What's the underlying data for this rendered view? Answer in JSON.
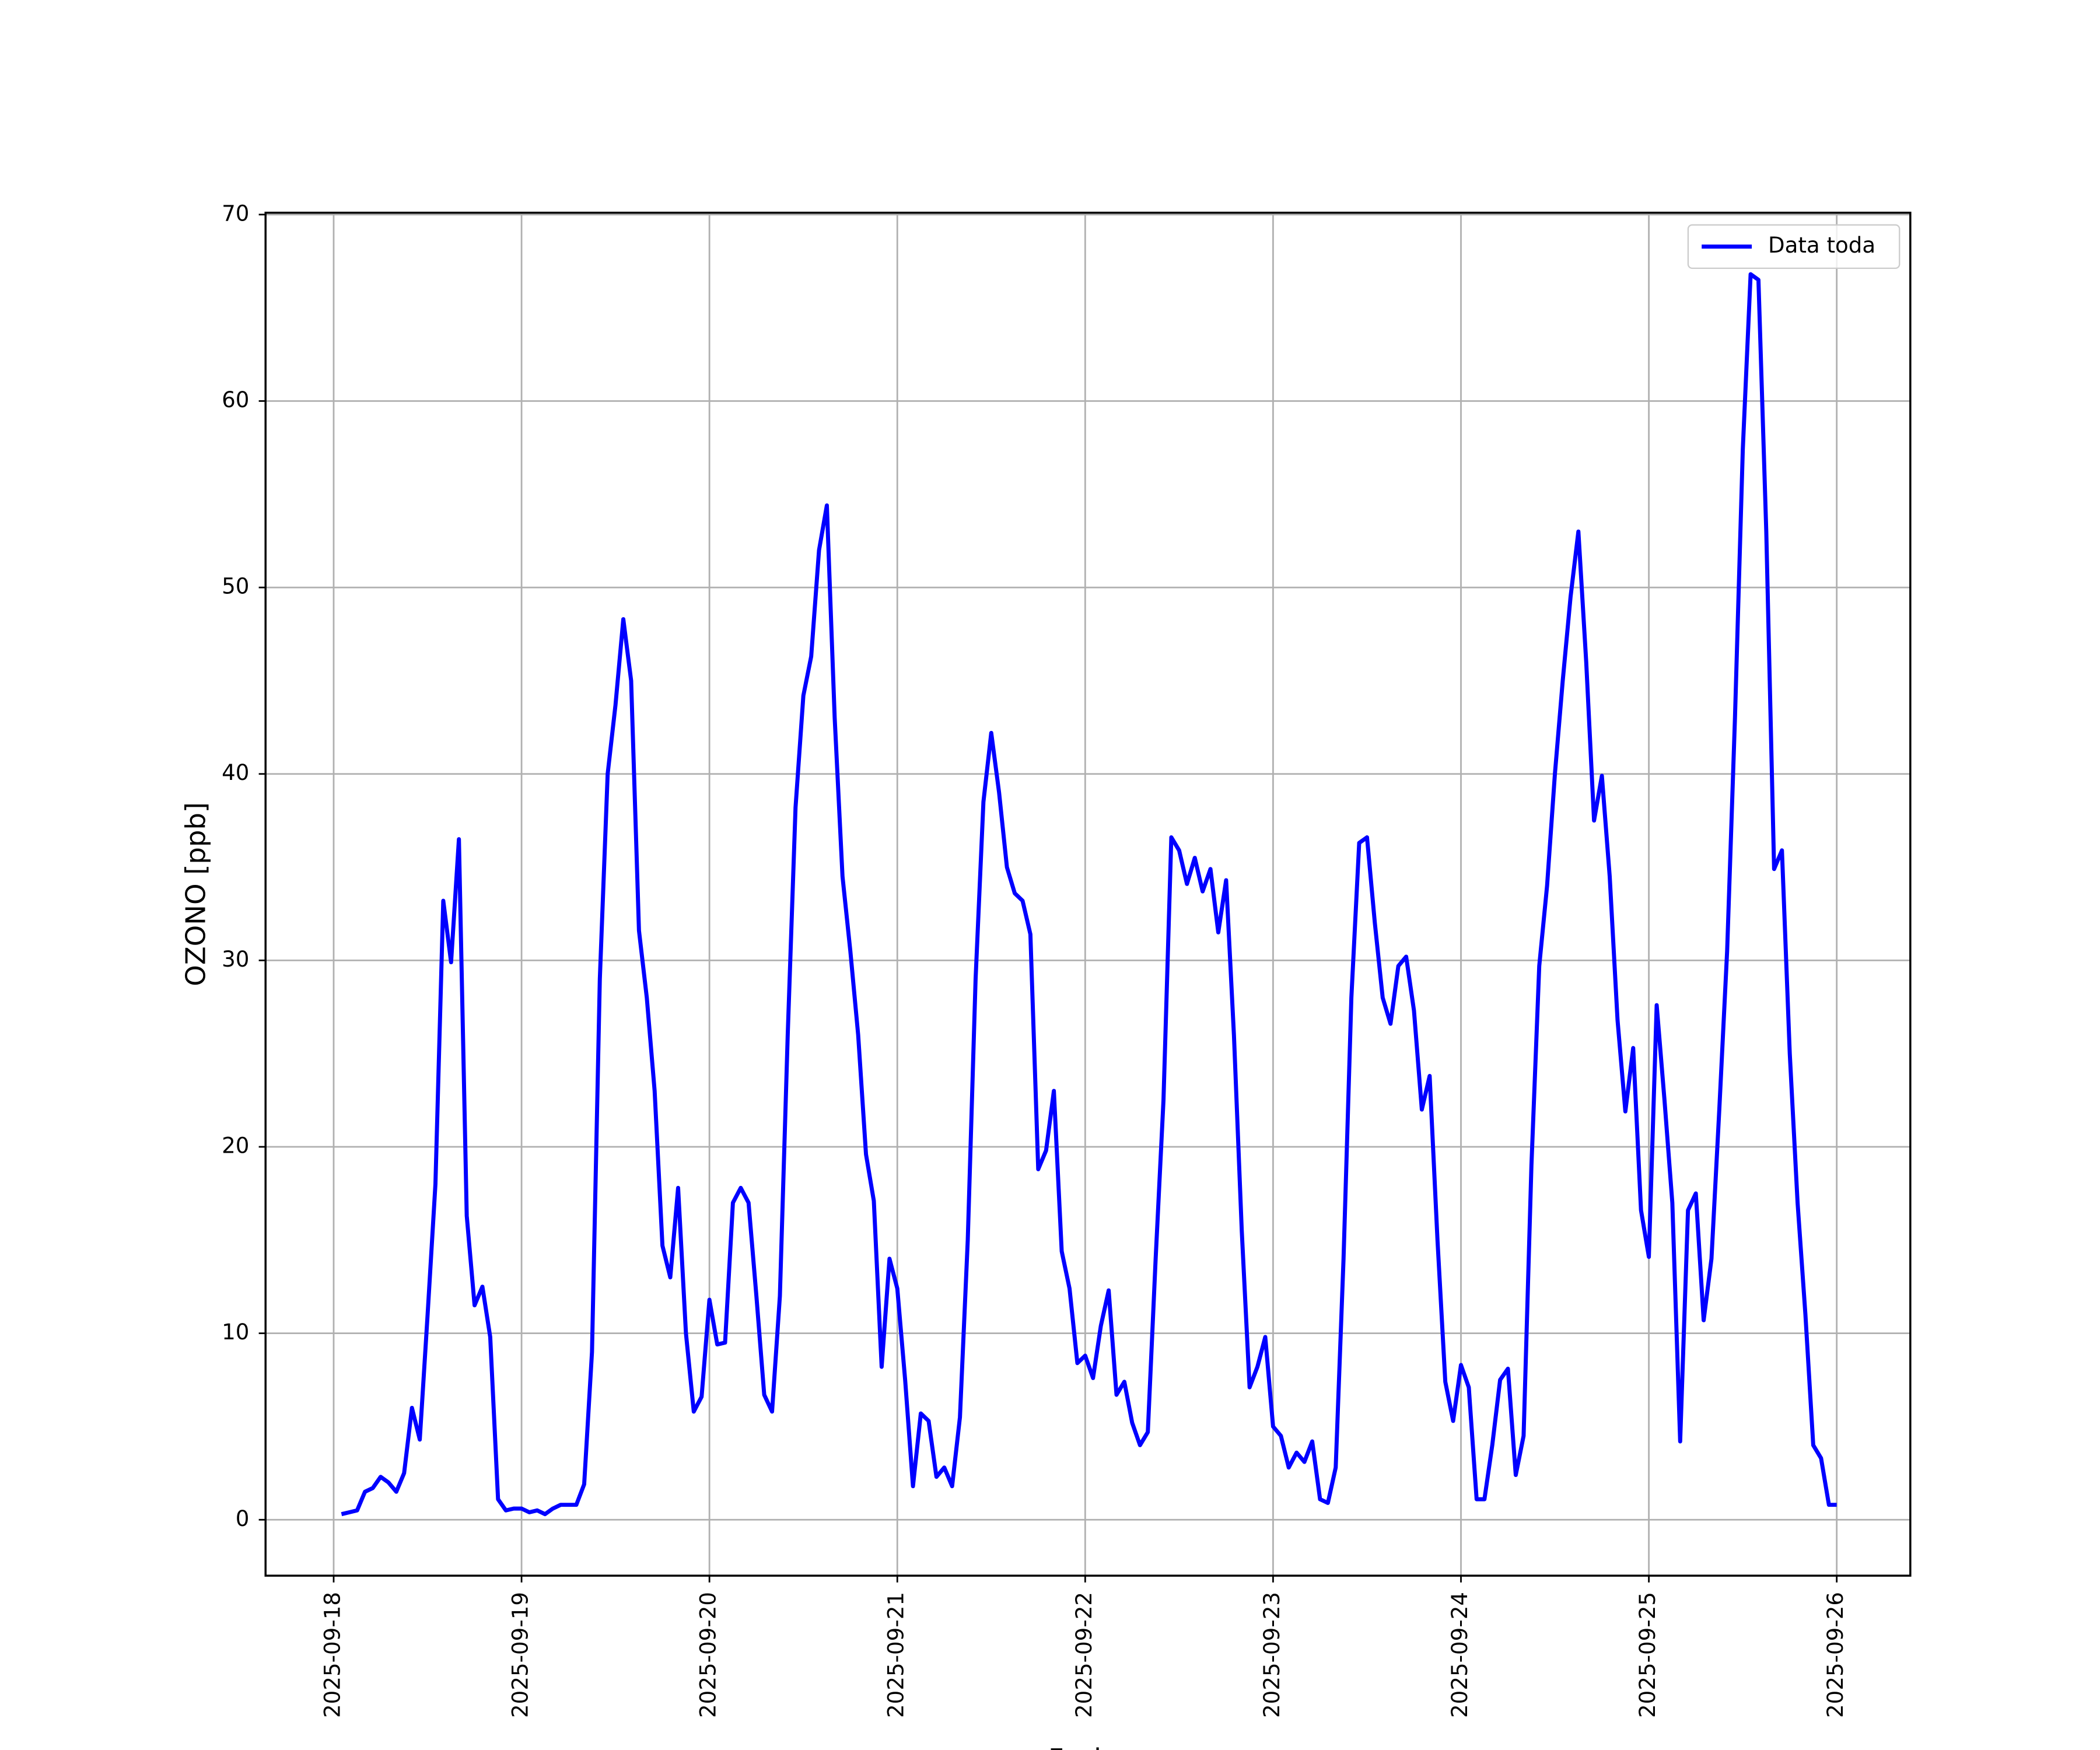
{
  "chart_data": {
    "type": "line",
    "xlabel": "Fecha",
    "ylabel": "OZONO [ppb]",
    "x": [
      1,
      2,
      3,
      4,
      5,
      6,
      7,
      8,
      9,
      10,
      11,
      12,
      13,
      14,
      15,
      16,
      17,
      18,
      19,
      20,
      21,
      22,
      23,
      24,
      25,
      26,
      27,
      28,
      29,
      30,
      31,
      32,
      33,
      34,
      35,
      36,
      37,
      38,
      39,
      40,
      41,
      42,
      43,
      44,
      45,
      46,
      47,
      48,
      49,
      50,
      51,
      52,
      53,
      54,
      55,
      56,
      57,
      58,
      59,
      60,
      61,
      62,
      63,
      64,
      65,
      66,
      67,
      68,
      69,
      70,
      71,
      72,
      73,
      74,
      75,
      76,
      77,
      78,
      79,
      80,
      81,
      82,
      83,
      84,
      85,
      86,
      87,
      88,
      89,
      90,
      91,
      92,
      93,
      94,
      95,
      96,
      97,
      98,
      99,
      100,
      101,
      102,
      103,
      104,
      105,
      106,
      107,
      108,
      109,
      110,
      111,
      112,
      113,
      114,
      115,
      116,
      117,
      118,
      119,
      120,
      121,
      122,
      123,
      124,
      125,
      126,
      127,
      128,
      129,
      130,
      131,
      132,
      133,
      134,
      135,
      136,
      137,
      138,
      139,
      140,
      141,
      142,
      143,
      144,
      145,
      146,
      147,
      148,
      149,
      150,
      151,
      152,
      153,
      154,
      155,
      156,
      157,
      158,
      159,
      160,
      161,
      162,
      163,
      164,
      165,
      166,
      167,
      168,
      169,
      170,
      171,
      172,
      173,
      174,
      175,
      176,
      177,
      178,
      179,
      180,
      181,
      182,
      183,
      184,
      185,
      186,
      187,
      188,
      189,
      190,
      191,
      192
    ],
    "series": [
      {
        "name": "Data toda",
        "color": "#0000ff",
        "values": [
          0.3,
          0.4,
          0.5,
          1.5,
          1.7,
          2.3,
          2.0,
          1.5,
          2.5,
          6.0,
          4.3,
          11,
          18,
          33.2,
          29.9,
          36.5,
          16.3,
          11.5,
          12.5,
          9.8,
          1.1,
          0.5,
          0.6,
          0.6,
          0.4,
          0.5,
          0.3,
          0.6,
          0.8,
          0.8,
          0.8,
          1.9,
          9,
          29,
          40,
          43.7,
          48.3,
          45,
          31.6,
          28,
          23,
          14.7,
          13,
          17.8,
          10,
          5.8,
          6.6,
          11.8,
          9.4,
          9.5,
          17,
          17.8,
          17,
          12,
          6.7,
          5.8,
          12,
          26,
          38.2,
          44.2,
          46.3,
          52,
          54.4,
          43,
          34.5,
          30.5,
          26,
          19.6,
          17.1,
          8.2,
          14,
          12.4,
          7.5,
          1.8,
          5.7,
          5.3,
          2.3,
          2.8,
          1.8,
          5.5,
          15,
          29,
          38.5,
          42.2,
          39,
          35,
          33.6,
          33.2,
          31.4,
          18.8,
          19.8,
          23,
          14.4,
          12.4,
          8.4,
          8.8,
          7.6,
          10.4,
          12.3,
          6.7,
          7.4,
          5.2,
          4.0,
          4.7,
          14,
          22.5,
          36.6,
          35.9,
          34.1,
          35.5,
          33.7,
          34.9,
          31.5,
          34.3,
          26,
          15.5,
          7.1,
          8.2,
          9.8,
          5,
          4.5,
          2.8,
          3.6,
          3.1,
          4.2,
          1.1,
          0.9,
          2.8,
          14,
          28,
          36.3,
          36.6,
          32,
          28,
          26.6,
          29.7,
          30.2,
          27.3,
          22,
          23.8,
          15,
          7.4,
          5.3,
          8.3,
          7.1,
          1.1,
          1.1,
          4,
          7.5,
          8.1,
          2.4,
          4.5,
          19,
          29.7,
          34,
          40,
          45,
          49.5,
          53,
          46,
          37.5,
          39.9,
          34.5,
          26.8,
          21.9,
          25.3,
          16.6,
          14.1,
          27.6,
          22.5,
          17,
          4.2,
          16.6,
          17.5,
          10.7,
          14,
          22,
          30.5,
          43,
          57.4,
          66.8,
          66.5,
          53,
          34.9,
          35.9,
          25,
          17,
          11,
          4,
          3.3,
          0.8,
          0.8
        ]
      }
    ],
    "xlim": [
      -8.7,
      201.4
    ],
    "xticks": [
      {
        "value": 0,
        "label": "2025-09-18"
      },
      {
        "value": 24,
        "label": "2025-09-19"
      },
      {
        "value": 48,
        "label": "2025-09-20"
      },
      {
        "value": 72,
        "label": "2025-09-21"
      },
      {
        "value": 96,
        "label": "2025-09-22"
      },
      {
        "value": 120,
        "label": "2025-09-23"
      },
      {
        "value": 144,
        "label": "2025-09-24"
      },
      {
        "value": 168,
        "label": "2025-09-25"
      },
      {
        "value": 192,
        "label": "2025-09-26"
      }
    ],
    "ylim": [
      -3.0,
      70.1
    ],
    "yticks": [
      0,
      10,
      20,
      30,
      40,
      50,
      60,
      70
    ],
    "grid": true,
    "legend": "upper right"
  }
}
